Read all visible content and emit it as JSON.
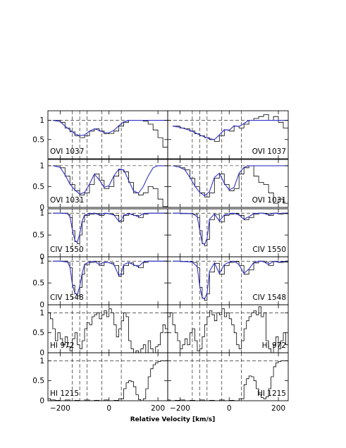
{
  "chart_data": {
    "type": "line",
    "title": "",
    "xlabel": "Relative Velocity [km/s]",
    "xlim": [
      -250,
      240
    ],
    "xticks": [
      -200,
      0,
      200
    ],
    "continuum_color": "#3333cc",
    "data_color": "#000000",
    "components": [
      -150,
      -120,
      -90,
      -30,
      50
    ],
    "columns": [
      {
        "label_side": "left",
        "xticks_shown": [
          -200,
          0,
          200
        ]
      },
      {
        "label_side": "right",
        "xticks_shown": [
          -200,
          0,
          200
        ]
      }
    ],
    "rows": [
      {
        "ion": "OVI  1037",
        "ylim": [
          0,
          1.25
        ],
        "yticks": [
          0.5,
          1
        ],
        "yticklabels": [
          "0.5",
          "1"
        ],
        "left": {
          "x": [
            -230,
            -200,
            -180,
            -160,
            -140,
            -120,
            -100,
            -80,
            -60,
            -40,
            -20,
            0,
            20,
            40,
            60,
            80,
            100,
            120,
            140,
            160,
            180,
            200,
            220,
            240
          ],
          "flux": [
            1.0,
            0.95,
            0.8,
            0.7,
            0.6,
            0.55,
            0.6,
            0.72,
            0.78,
            0.72,
            0.65,
            0.66,
            0.72,
            0.85,
            0.95,
            1.0,
            1.0,
            1.0,
            0.98,
            0.9,
            0.75,
            0.55,
            0.3,
            0.1
          ],
          "model": [
            1.0,
            0.97,
            0.85,
            0.75,
            0.65,
            0.6,
            0.62,
            0.72,
            0.78,
            0.74,
            0.68,
            0.68,
            0.74,
            0.86,
            0.96,
            1.0,
            1.0,
            1.0,
            1.0,
            1.0,
            1.0,
            1.0,
            1.0,
            1.0
          ]
        },
        "right": {
          "x": [
            -230,
            -200,
            -180,
            -160,
            -140,
            -120,
            -100,
            -80,
            -60,
            -40,
            -20,
            0,
            20,
            40,
            60,
            80,
            100,
            120,
            140,
            160,
            180,
            200,
            220,
            240
          ],
          "flux": [
            0.85,
            0.8,
            0.78,
            0.72,
            0.65,
            0.6,
            0.55,
            0.5,
            0.45,
            0.6,
            0.75,
            0.72,
            0.85,
            0.8,
            0.9,
            1.0,
            1.05,
            1.1,
            1.15,
            1.0,
            1.1,
            0.95,
            0.8,
            0.7
          ],
          "model": [
            0.85,
            0.82,
            0.78,
            0.74,
            0.68,
            0.62,
            0.57,
            0.52,
            0.5,
            0.62,
            0.76,
            0.74,
            0.86,
            0.84,
            0.92,
            1.0,
            1.0,
            1.0,
            1.0,
            1.0,
            1.0,
            1.0,
            1.0,
            1.0
          ]
        }
      },
      {
        "ion": "OVI  1031",
        "ylim": [
          0,
          1.15
        ],
        "yticks": [
          0,
          0.5,
          1
        ],
        "yticklabels": [
          "0",
          "0.5",
          "1"
        ],
        "left": {
          "x": [
            -230,
            -200,
            -180,
            -160,
            -140,
            -120,
            -100,
            -80,
            -60,
            -40,
            -20,
            0,
            20,
            40,
            60,
            80,
            100,
            120,
            140,
            160,
            180,
            200,
            220,
            240
          ],
          "flux": [
            1.0,
            0.95,
            0.75,
            0.55,
            0.4,
            0.3,
            0.35,
            0.55,
            0.8,
            0.65,
            0.45,
            0.5,
            0.75,
            0.9,
            0.85,
            0.6,
            0.35,
            0.3,
            0.35,
            0.5,
            0.45,
            0.2,
            0.02,
            0.1
          ],
          "model": [
            1.0,
            0.96,
            0.78,
            0.56,
            0.42,
            0.32,
            0.36,
            0.56,
            0.8,
            0.66,
            0.48,
            0.52,
            0.76,
            0.92,
            0.9,
            0.65,
            0.4,
            0.34,
            0.5,
            0.75,
            0.95,
            1.0,
            1.0,
            1.0
          ]
        },
        "right": {
          "x": [
            -230,
            -200,
            -180,
            -160,
            -140,
            -120,
            -100,
            -80,
            -60,
            -40,
            -20,
            0,
            20,
            40,
            60,
            80,
            100,
            120,
            140,
            160,
            180,
            200,
            220,
            240
          ],
          "flux": [
            1.0,
            0.95,
            0.9,
            0.7,
            0.5,
            0.35,
            0.25,
            0.35,
            0.7,
            0.8,
            0.55,
            0.4,
            0.45,
            0.8,
            0.95,
            1.0,
            0.75,
            0.6,
            0.55,
            0.35,
            0.1,
            0.2,
            0.1,
            0.05
          ],
          "model": [
            1.0,
            0.96,
            0.9,
            0.72,
            0.52,
            0.36,
            0.28,
            0.38,
            0.72,
            0.82,
            0.58,
            0.42,
            0.48,
            0.82,
            0.96,
            1.0,
            1.0,
            1.0,
            1.0,
            1.0,
            1.0,
            1.0,
            1.0,
            1.0
          ]
        }
      },
      {
        "ion": "CIV  1550",
        "ylim": [
          0,
          1.1
        ],
        "yticks": [
          0,
          0.5,
          1
        ],
        "yticklabels": [
          "0",
          "0.5",
          "1"
        ],
        "left": {
          "x": [
            -230,
            -200,
            -170,
            -160,
            -150,
            -140,
            -130,
            -120,
            -110,
            -100,
            -80,
            -60,
            -40,
            -20,
            0,
            20,
            40,
            50,
            60,
            80,
            100,
            120,
            140,
            160,
            180,
            200,
            220,
            240
          ],
          "flux": [
            1.0,
            1.0,
            0.98,
            0.9,
            0.6,
            0.35,
            0.3,
            0.5,
            0.8,
            0.95,
            0.98,
            0.99,
            0.95,
            0.99,
            0.98,
            0.95,
            0.8,
            0.82,
            0.95,
            0.98,
            0.95,
            0.9,
            0.98,
            1.0,
            1.0,
            1.0,
            1.0,
            1.0
          ],
          "model": [
            1.0,
            1.0,
            0.99,
            0.92,
            0.62,
            0.38,
            0.33,
            0.52,
            0.82,
            0.96,
            0.99,
            1.0,
            0.96,
            1.0,
            0.99,
            0.96,
            0.82,
            0.84,
            0.96,
            0.99,
            0.96,
            0.92,
            0.99,
            1.0,
            1.0,
            1.0,
            1.0,
            1.0
          ]
        },
        "right": {
          "x": [
            -230,
            -200,
            -150,
            -130,
            -120,
            -110,
            -100,
            -90,
            -80,
            -60,
            -40,
            -20,
            0,
            20,
            40,
            60,
            80,
            100,
            120,
            140,
            160,
            180,
            200,
            220,
            240
          ],
          "flux": [
            1.0,
            0.99,
            0.98,
            0.9,
            0.6,
            0.3,
            0.25,
            0.4,
            0.85,
            0.97,
            0.8,
            0.95,
            0.98,
            0.99,
            0.95,
            0.85,
            0.9,
            0.98,
            1.0,
            0.99,
            0.95,
            1.0,
            0.98,
            0.99,
            1.0
          ],
          "model": [
            1.0,
            1.0,
            0.99,
            0.92,
            0.62,
            0.32,
            0.28,
            0.42,
            0.86,
            0.98,
            0.82,
            0.96,
            0.99,
            1.0,
            0.96,
            0.86,
            0.92,
            0.99,
            1.0,
            1.0,
            0.96,
            1.0,
            0.99,
            1.0,
            1.0
          ]
        }
      },
      {
        "ion": "CIV  1548",
        "ylim": [
          0,
          1.1
        ],
        "yticks": [
          0,
          0.5,
          1
        ],
        "yticklabels": [
          "0",
          "0.5",
          "1"
        ],
        "left": {
          "x": [
            -230,
            -200,
            -170,
            -160,
            -150,
            -140,
            -130,
            -120,
            -110,
            -100,
            -80,
            -60,
            -40,
            -20,
            0,
            20,
            40,
            50,
            60,
            80,
            100,
            120,
            140,
            160,
            180,
            200,
            220,
            240
          ],
          "flux": [
            1.0,
            1.0,
            0.97,
            0.85,
            0.45,
            0.25,
            0.2,
            0.4,
            0.7,
            0.92,
            0.97,
            0.99,
            0.9,
            0.97,
            0.96,
            0.9,
            0.65,
            0.7,
            0.9,
            0.96,
            0.9,
            0.85,
            0.97,
            1.0,
            1.0,
            1.0,
            1.0,
            1.0
          ],
          "model": [
            1.0,
            1.0,
            0.98,
            0.87,
            0.47,
            0.27,
            0.23,
            0.42,
            0.72,
            0.93,
            0.98,
            1.0,
            0.92,
            0.98,
            0.97,
            0.92,
            0.67,
            0.72,
            0.92,
            0.97,
            0.92,
            0.87,
            0.98,
            1.0,
            1.0,
            1.0,
            1.0,
            1.0
          ]
        },
        "right": {
          "x": [
            -230,
            -200,
            -150,
            -130,
            -120,
            -110,
            -100,
            -90,
            -80,
            -60,
            -40,
            -20,
            0,
            20,
            40,
            60,
            80,
            100,
            120,
            140,
            160,
            180,
            200,
            220,
            240
          ],
          "flux": [
            1.0,
            0.99,
            0.97,
            0.85,
            0.4,
            0.15,
            0.1,
            0.25,
            0.75,
            0.95,
            0.7,
            0.9,
            0.97,
            0.99,
            0.9,
            0.7,
            0.8,
            0.96,
            1.0,
            0.98,
            0.9,
            0.99,
            0.97,
            0.98,
            1.0
          ],
          "model": [
            1.0,
            1.0,
            0.98,
            0.87,
            0.42,
            0.17,
            0.13,
            0.27,
            0.77,
            0.96,
            0.72,
            0.92,
            0.98,
            1.0,
            0.92,
            0.72,
            0.82,
            0.97,
            1.0,
            0.99,
            0.92,
            1.0,
            0.98,
            0.99,
            1.0
          ]
        }
      },
      {
        "ion": "HI  972",
        "ylim": [
          0,
          1.2
        ],
        "yticks": [
          0,
          0.5,
          1
        ],
        "yticklabels": [
          "0",
          "0.5",
          "1"
        ],
        "left": {
          "x": [
            -250,
            -240,
            -230,
            -220,
            -210,
            -200,
            -190,
            -180,
            -170,
            -160,
            -150,
            -140,
            -130,
            -120,
            -110,
            -100,
            -90,
            -80,
            -70,
            -60,
            -50,
            -40,
            -30,
            -20,
            -10,
            0,
            10,
            20,
            30,
            40,
            50,
            60,
            70,
            80,
            90,
            100,
            110,
            120,
            130,
            140,
            150,
            160,
            170,
            180,
            190,
            200,
            210,
            220,
            230,
            240
          ],
          "flux": [
            1.0,
            0.85,
            0.6,
            0.3,
            0.5,
            0.35,
            0.2,
            0.4,
            0.15,
            0.05,
            0.35,
            0.5,
            0.2,
            0.1,
            0.3,
            0.6,
            0.75,
            0.7,
            0.9,
            0.95,
            1.0,
            0.85,
            0.95,
            1.05,
            0.9,
            1.1,
            1.0,
            0.7,
            0.4,
            0.6,
            0.8,
            1.0,
            0.9,
            0.3,
            0.1,
            0.0,
            0.05,
            0.0,
            0.1,
            0.2,
            0.0,
            0.3,
            0.1,
            0.0,
            0.15,
            0.2,
            0.5,
            0.7,
            0.6,
            1.0
          ],
          "model": []
        },
        "right": {
          "x": [
            -250,
            -240,
            -230,
            -220,
            -210,
            -200,
            -190,
            -180,
            -170,
            -160,
            -150,
            -140,
            -130,
            -120,
            -110,
            -100,
            -90,
            -80,
            -70,
            -60,
            -50,
            -40,
            -30,
            -20,
            -10,
            0,
            10,
            20,
            30,
            40,
            50,
            60,
            70,
            80,
            90,
            100,
            110,
            120,
            130,
            140,
            150,
            160,
            170,
            180,
            190,
            200,
            210,
            220,
            230,
            240
          ],
          "flux": [
            0.9,
            1.0,
            0.7,
            0.5,
            0.3,
            0.1,
            0.2,
            0.35,
            0.2,
            0.5,
            0.6,
            0.3,
            0.05,
            0.1,
            0.4,
            0.7,
            0.9,
            1.05,
            0.95,
            0.8,
            1.0,
            0.95,
            1.1,
            0.9,
            1.0,
            0.85,
            0.7,
            0.5,
            0.2,
            0.1,
            0.3,
            0.6,
            0.8,
            0.9,
            1.0,
            1.05,
            0.95,
            1.15,
            0.9,
            1.0,
            0.3,
            0.1,
            0.0,
            0.2,
            0.4,
            0.1,
            0.3,
            0.5,
            0.2,
            0.6
          ],
          "model": []
        }
      },
      {
        "ion": "HI  1215",
        "ylim": [
          0,
          1.2
        ],
        "yticks": [
          0,
          0.5,
          1
        ],
        "yticklabels": [
          "0",
          "0.5",
          "1"
        ],
        "left": {
          "x": [
            -250,
            -240,
            -220,
            -200,
            -180,
            -160,
            -140,
            -120,
            -100,
            -80,
            -60,
            -40,
            -20,
            0,
            20,
            40,
            60,
            70,
            80,
            90,
            100,
            110,
            120,
            130,
            140,
            150,
            160,
            170,
            180,
            190,
            200,
            210,
            220,
            230,
            240
          ],
          "flux": [
            0.05,
            0.02,
            0.01,
            0.0,
            0.02,
            0.0,
            0.01,
            0.0,
            0.02,
            0.0,
            0.01,
            0.0,
            0.02,
            0.0,
            0.01,
            0.05,
            0.3,
            0.45,
            0.5,
            0.48,
            0.35,
            0.15,
            0.03,
            0.0,
            0.05,
            0.3,
            0.6,
            0.8,
            0.9,
            0.95,
            0.98,
            1.0,
            1.0,
            1.0,
            1.0
          ],
          "model": []
        },
        "right": {
          "x": [
            -250,
            -240,
            -220,
            -200,
            -180,
            -160,
            -140,
            -120,
            -100,
            -80,
            -60,
            -40,
            -20,
            0,
            20,
            40,
            60,
            70,
            80,
            90,
            100,
            110,
            120,
            130,
            140,
            150,
            160,
            170,
            180,
            190,
            200,
            210,
            220,
            230,
            240
          ],
          "flux": [
            0.02,
            0.0,
            0.01,
            0.02,
            0.0,
            0.01,
            0.0,
            0.02,
            0.0,
            0.01,
            0.0,
            0.02,
            0.0,
            0.01,
            0.0,
            0.05,
            0.4,
            0.55,
            0.62,
            0.6,
            0.5,
            0.3,
            0.15,
            0.08,
            0.05,
            0.1,
            0.3,
            0.6,
            0.85,
            0.95,
            0.98,
            1.0,
            1.0,
            1.0,
            1.0
          ],
          "model": []
        }
      }
    ]
  }
}
